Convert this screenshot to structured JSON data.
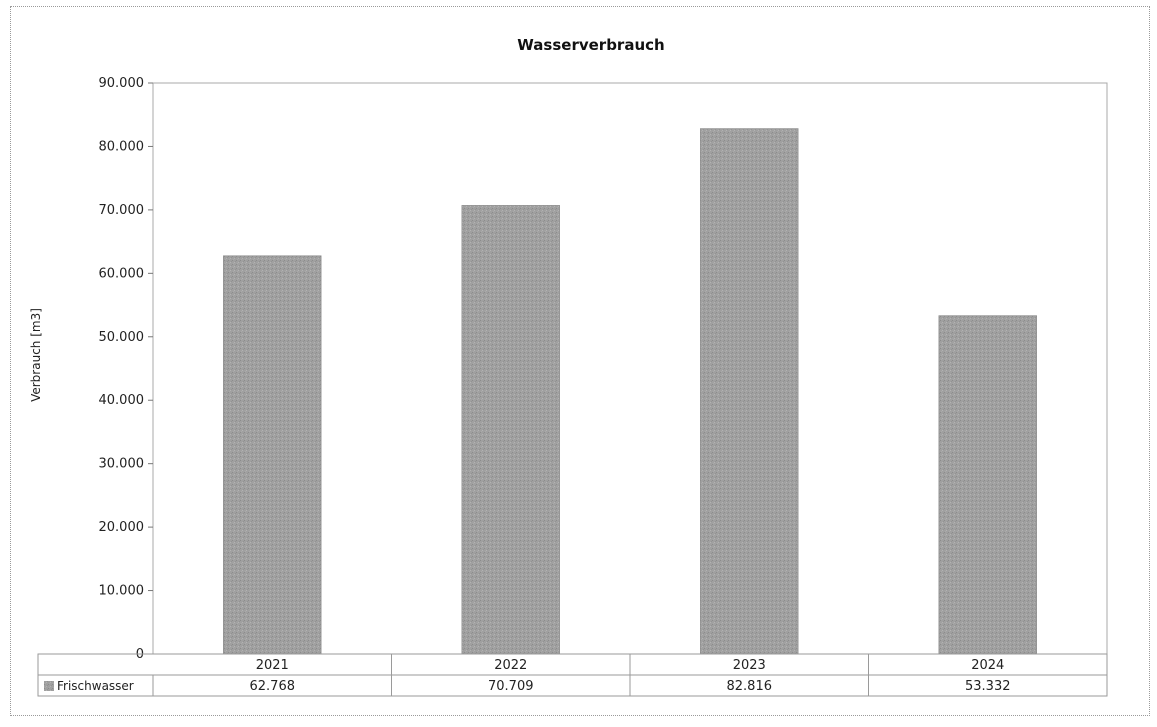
{
  "colors": {
    "bar": "#9d9d9d",
    "bar_dark": "#8a8a8a",
    "plot_border": "#a8a8a8",
    "table_border": "#9a9a9a",
    "legend_swatch": "#a0a0a0"
  },
  "chart_data": {
    "type": "bar",
    "title": "Wasserverbrauch",
    "xlabel": "",
    "ylabel": "Verbrauch [m3]",
    "ylim": [
      0,
      90000
    ],
    "yticks": [
      0,
      10000,
      20000,
      30000,
      40000,
      50000,
      60000,
      70000,
      80000,
      90000
    ],
    "ytick_labels": [
      "0",
      "10.000",
      "20.000",
      "30.000",
      "40.000",
      "50.000",
      "60.000",
      "70.000",
      "80.000",
      "90.000"
    ],
    "grid": false,
    "legend": "data-table-left",
    "categories": [
      "2021",
      "2022",
      "2023",
      "2024"
    ],
    "series": [
      {
        "name": "Frischwasser",
        "values": [
          62768,
          70709,
          82816,
          53332
        ],
        "value_labels": [
          "62.768",
          "70.709",
          "82.816",
          "53.332"
        ]
      }
    ]
  }
}
